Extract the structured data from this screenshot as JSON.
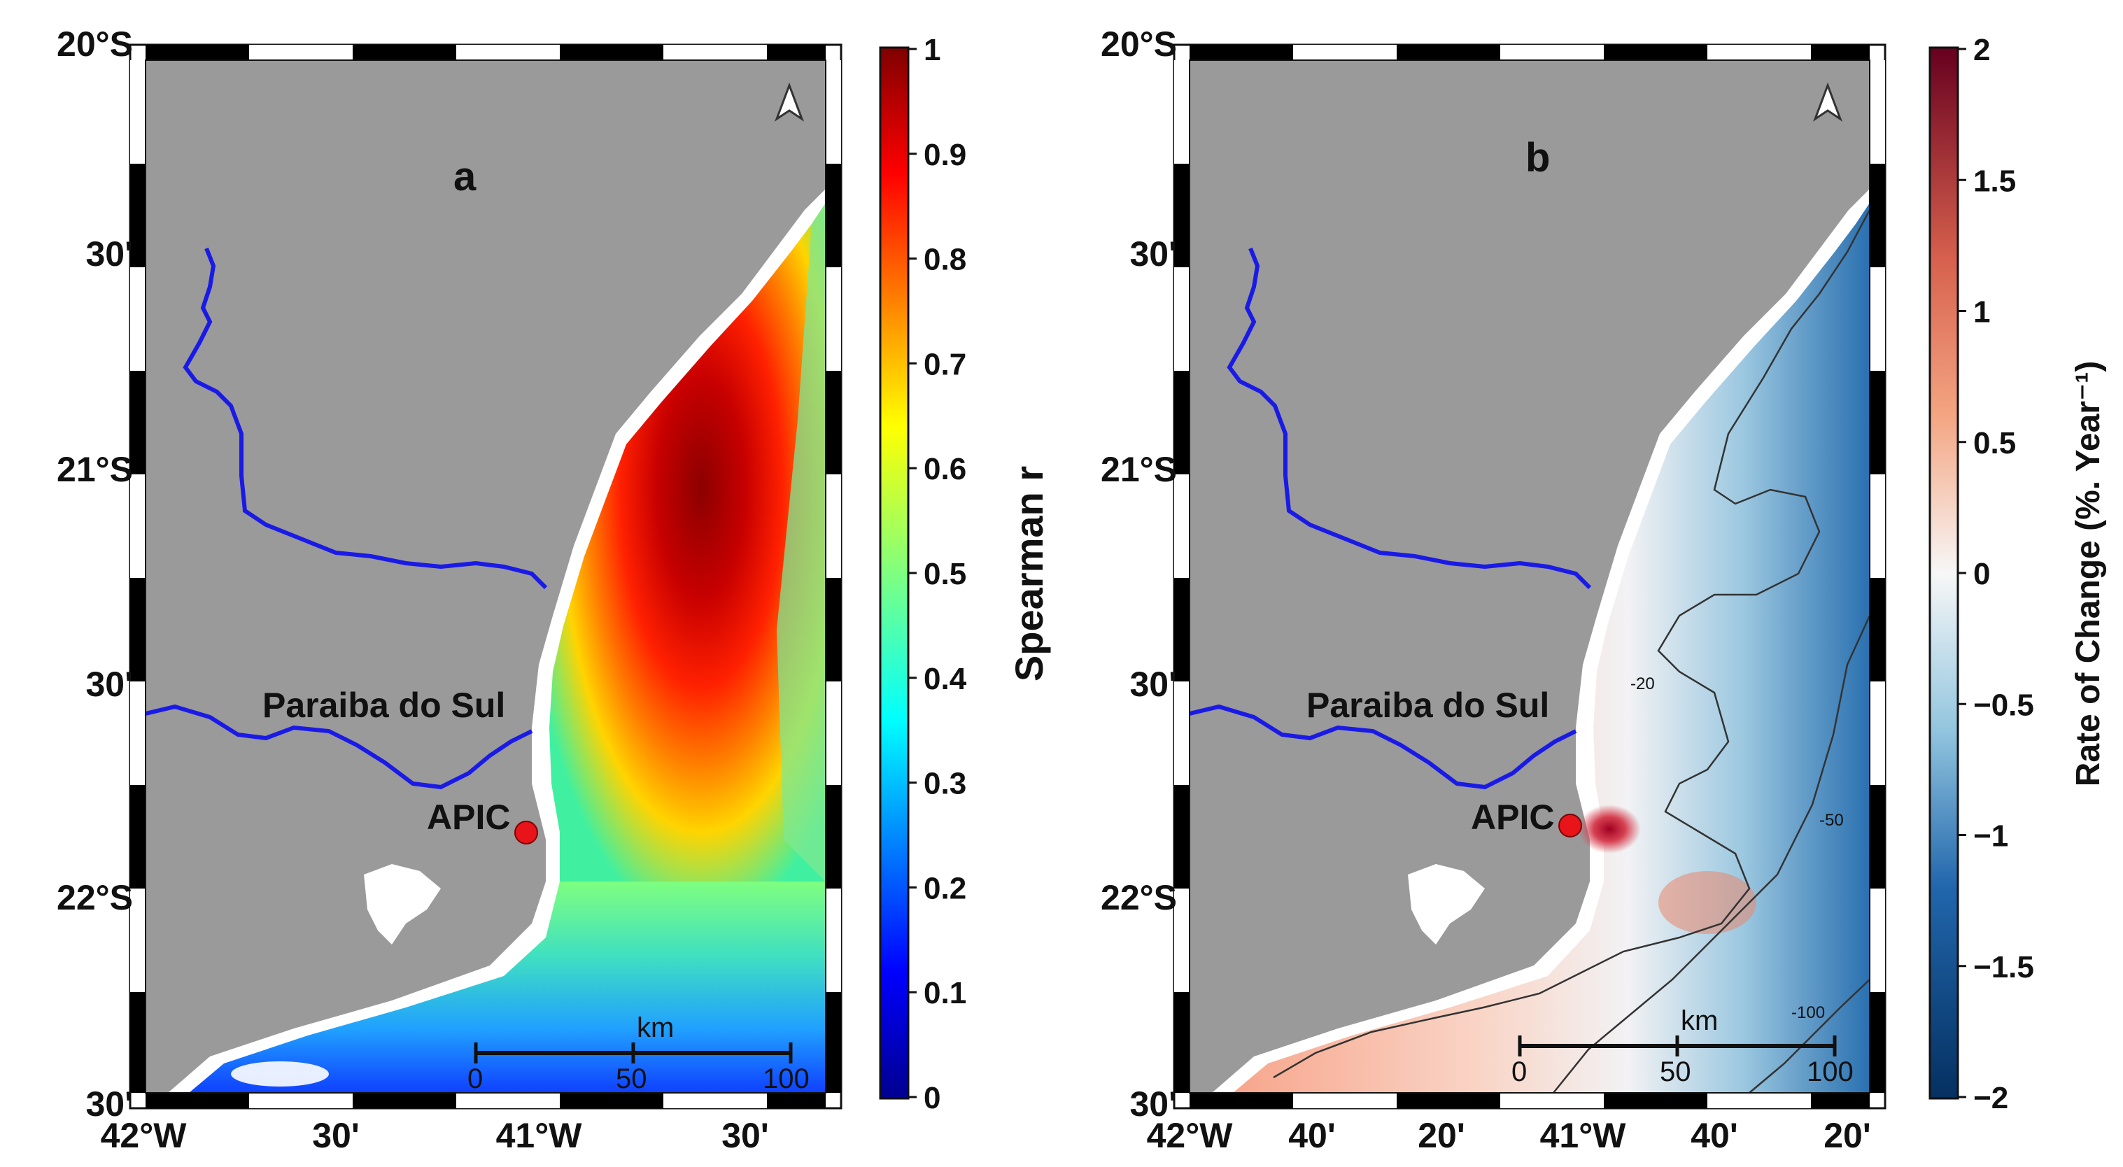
{
  "panels": [
    {
      "id": "a",
      "letter": "a",
      "lat_labels": [
        "20°S",
        "30'",
        "21°S",
        "30'",
        "22°S",
        "30'"
      ],
      "lon_labels": [
        "42°W",
        "30'",
        "41°W",
        "30'"
      ],
      "river_label": "Paraiba do Sul",
      "station_label": "APIC",
      "scale_unit": "km",
      "scale_ticks": [
        "0",
        "50",
        "100"
      ],
      "colorbar": {
        "label": "Spearman r",
        "ticks": [
          "1",
          "0.9",
          "0.8",
          "0.7",
          "0.6",
          "0.5",
          "0.4",
          "0.3",
          "0.2",
          "0.1",
          "0"
        ],
        "colormap": "jet"
      }
    },
    {
      "id": "b",
      "letter": "b",
      "lat_labels": [
        "20°S",
        "30'",
        "21°S",
        "30'",
        "22°S",
        "30'"
      ],
      "lon_labels": [
        "42°W",
        "40'",
        "20'",
        "41°W",
        "40'",
        "20'"
      ],
      "river_label": "Paraiba do Sul",
      "station_label": "APIC",
      "scale_unit": "km",
      "scale_ticks": [
        "0",
        "50",
        "100"
      ],
      "contour_labels": [
        "-20",
        "-50",
        "-100"
      ],
      "colorbar": {
        "label": "Rate of Change (%. Year⁻¹)",
        "ticks": [
          "2",
          "1.5",
          "1",
          "0.5",
          "0",
          "−0.5",
          "−1",
          "−1.5",
          "−2"
        ],
        "colormap": "diverging red-white-blue"
      }
    }
  ],
  "colors": {
    "land": "#9a9a9a",
    "river": "#1a1ae6",
    "station": "#e8141a",
    "coast_band": "#ffffff"
  }
}
